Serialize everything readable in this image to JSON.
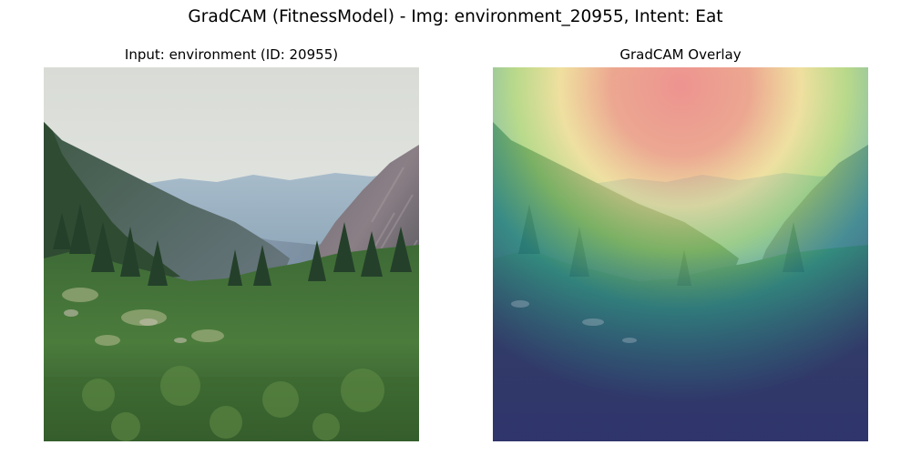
{
  "figure": {
    "title": "GradCAM (FitnessModel) - Img: environment_20955, Intent: Eat"
  },
  "panels": [
    {
      "title": "Input: environment (ID: 20955)",
      "content": "mountain-valley-photo"
    },
    {
      "title": "GradCAM Overlay",
      "content": "gradcam-heatmap-overlay",
      "colormap": [
        "#30307a",
        "#2aa6b0",
        "#9ce070",
        "#f5e896",
        "#ee8c8c"
      ]
    }
  ]
}
